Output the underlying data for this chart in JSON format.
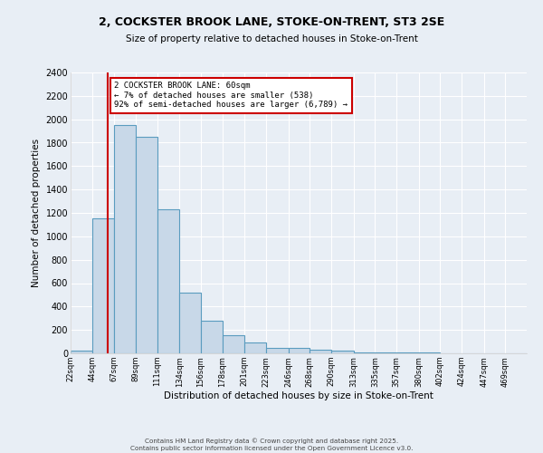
{
  "title_line1": "2, COCKSTER BROOK LANE, STOKE-ON-TRENT, ST3 2SE",
  "title_line2": "Size of property relative to detached houses in Stoke-on-Trent",
  "xlabel": "Distribution of detached houses by size in Stoke-on-Trent",
  "ylabel": "Number of detached properties",
  "bar_edges": [
    22,
    44,
    67,
    89,
    111,
    134,
    156,
    178,
    201,
    223,
    246,
    268,
    290,
    313,
    335,
    357,
    380,
    402,
    424,
    447,
    469
  ],
  "bar_heights": [
    25,
    1150,
    1950,
    1850,
    1230,
    520,
    275,
    155,
    90,
    45,
    45,
    30,
    20,
    8,
    5,
    5,
    5,
    3,
    3,
    2,
    2
  ],
  "bar_color": "#c8d8e8",
  "bar_edge_color": "#5a9cbf",
  "background_color": "#e8eef5",
  "grid_color": "#ffffff",
  "ylim": [
    0,
    2400
  ],
  "yticks": [
    0,
    200,
    400,
    600,
    800,
    1000,
    1200,
    1400,
    1600,
    1800,
    2000,
    2200,
    2400
  ],
  "property_line_x": 60,
  "annotation_text": "2 COCKSTER BROOK LANE: 60sqm\n← 7% of detached houses are smaller (538)\n92% of semi-detached houses are larger (6,789) →",
  "annotation_box_color": "#ffffff",
  "annotation_box_edge_color": "#cc0000",
  "property_line_color": "#cc0000",
  "footer_line1": "Contains HM Land Registry data © Crown copyright and database right 2025.",
  "footer_line2": "Contains public sector information licensed under the Open Government Licence v3.0.",
  "tick_labels": [
    "22sqm",
    "44sqm",
    "67sqm",
    "89sqm",
    "111sqm",
    "134sqm",
    "156sqm",
    "178sqm",
    "201sqm",
    "223sqm",
    "246sqm",
    "268sqm",
    "290sqm",
    "313sqm",
    "335sqm",
    "357sqm",
    "380sqm",
    "402sqm",
    "424sqm",
    "447sqm",
    "469sqm"
  ]
}
